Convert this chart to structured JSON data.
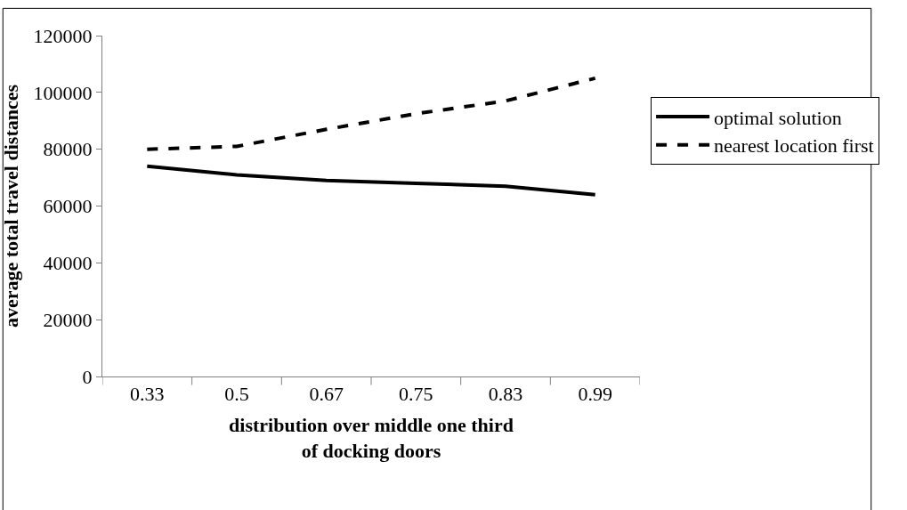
{
  "chart_data": {
    "type": "line",
    "xlabel": "distribution over middle one third of docking doors",
    "ylabel": "average total travel distances",
    "categories": [
      "0.33",
      "0.5",
      "0.67",
      "0.75",
      "0.83",
      "0.99"
    ],
    "series": [
      {
        "name": "optimal solution",
        "color": "#000000",
        "line_style": "solid",
        "values": [
          74000,
          71000,
          69000,
          68000,
          67000,
          64000
        ]
      },
      {
        "name": "nearest location first",
        "color": "#000000",
        "line_style": "dashed",
        "values": [
          80000,
          81000,
          87000,
          92500,
          97000,
          105000
        ]
      }
    ],
    "ylim": [
      0,
      120000
    ],
    "yticks": [
      0,
      20000,
      40000,
      60000,
      80000,
      100000,
      120000
    ],
    "grid": false,
    "legend": "right",
    "marker": "none"
  }
}
